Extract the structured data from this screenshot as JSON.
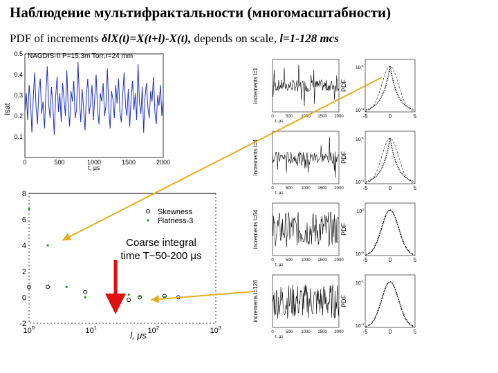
{
  "header": {
    "title": "Наблюдение мультифрактальности (многомасштабности)",
    "subtitle_prefix": "PDF of increments ",
    "subtitle_formula": "δlX(t)=X(t+l)-X(t),",
    "subtitle_mid": " depends on scale, ",
    "subtitle_range": "l=1-128 mcs"
  },
  "chart_data": [
    {
      "id": "timeseries",
      "type": "line",
      "title": "NAGDIS-II P=15.3m Torr,r=24 mm",
      "xlabel": "t, μs",
      "ylabel": "Isat",
      "xlim": [
        0,
        2000
      ],
      "ylim": [
        0.0,
        0.5
      ],
      "xticks": [
        0,
        500,
        1000,
        1500,
        2000
      ],
      "yticks": [
        0.1,
        0.2,
        0.3,
        0.4,
        0.5
      ],
      "color": "#1f2fbf",
      "series": [
        {
          "values": [
            0.22,
            0.31,
            0.18,
            0.35,
            0.27,
            0.12,
            0.29,
            0.41,
            0.24,
            0.16,
            0.33,
            0.38,
            0.21,
            0.27,
            0.14,
            0.3,
            0.44,
            0.26,
            0.19,
            0.34,
            0.25,
            0.11,
            0.29,
            0.39,
            0.22,
            0.31,
            0.17,
            0.36,
            0.28,
            0.2,
            0.42,
            0.25,
            0.15,
            0.32,
            0.27,
            0.37,
            0.19,
            0.23,
            0.46,
            0.28,
            0.17,
            0.33,
            0.24,
            0.13,
            0.3,
            0.38,
            0.21,
            0.26,
            0.35,
            0.18,
            0.29,
            0.4,
            0.23,
            0.16,
            0.31,
            0.27,
            0.36,
            0.2,
            0.25,
            0.43,
            0.24,
            0.14,
            0.32,
            0.28,
            0.19,
            0.35,
            0.26,
            0.38,
            0.22,
            0.17,
            0.3,
            0.41,
            0.25,
            0.2,
            0.33,
            0.15,
            0.28,
            0.37,
            0.23,
            0.31,
            0.18,
            0.45,
            0.26,
            0.21,
            0.34,
            0.12,
            0.29,
            0.36,
            0.24,
            0.19,
            0.32,
            0.27,
            0.39,
            0.22,
            0.16,
            0.3,
            0.25,
            0.35,
            0.2,
            0.28
          ]
        }
      ]
    },
    {
      "id": "moments",
      "type": "scatter",
      "xlabel": "l, μs",
      "xscale": "log",
      "xlim": [
        1,
        1000
      ],
      "ylim": [
        -2,
        8
      ],
      "yticks": [
        -2,
        0,
        2,
        4,
        6,
        8
      ],
      "xticks": [
        "10^0",
        "10^1",
        "10^2",
        "10^3"
      ],
      "legend": "top-right",
      "series": [
        {
          "name": "Skewness",
          "marker": "circle",
          "x": [
            1,
            2,
            8,
            40,
            60,
            150,
            250
          ],
          "y": [
            0.8,
            0.8,
            0.4,
            -0.2,
            0.0,
            0.1,
            0.0
          ]
        },
        {
          "name": "Flatness-3",
          "marker": "dot",
          "x": [
            1,
            2,
            4,
            8,
            40,
            60,
            150
          ],
          "y": [
            6.8,
            4.0,
            0.8,
            0.0,
            0.2,
            0.1,
            0.0
          ]
        }
      ]
    }
  ],
  "increments_panels": [
    {
      "ylabel": "increments l=1",
      "xlabel": "t, μs",
      "xticks": [
        "0",
        "500",
        "1000",
        "1500",
        "2000"
      ],
      "noise": "spiky"
    },
    {
      "ylabel": "increments l=4",
      "xlabel": "t, μs",
      "xticks": [
        "0",
        "500",
        "1000",
        "1500",
        "2000"
      ],
      "noise": "spiky"
    },
    {
      "ylabel": "increments l=64",
      "xlabel": "t, μs",
      "xticks": [
        "0",
        "500",
        "1000",
        "1500",
        "2000"
      ],
      "noise": "dense"
    },
    {
      "ylabel": "increments l=128",
      "xlabel": "t, μs",
      "xticks": [
        "0",
        "500",
        "1000",
        "1500",
        "2000"
      ],
      "noise": "dense"
    }
  ],
  "pdf_panels": [
    {
      "ylabel": "PDF",
      "yticks": [
        "10^-1",
        "10^-4"
      ],
      "xticks": [
        "-5",
        "0",
        "5"
      ],
      "shape": "tailed"
    },
    {
      "ylabel": "PDF",
      "yticks": [
        "10^-1",
        "10^-4"
      ],
      "xticks": [
        "-5",
        "0",
        "5"
      ],
      "shape": "tailed"
    },
    {
      "ylabel": "PDF",
      "yticks": [
        "10^0",
        "10^-5"
      ],
      "xticks": [
        "-5",
        "0",
        "5"
      ],
      "shape": "gauss"
    },
    {
      "ylabel": "PDF",
      "yticks": [
        "10^-1",
        "10^-4"
      ],
      "xticks": [
        "-5",
        "0",
        "5"
      ],
      "shape": "gauss"
    }
  ],
  "annotation": {
    "line1": "Coarse integral",
    "line2": "time  T~50-200 μs"
  },
  "colors": {
    "arrow_yellow": "#e0b020",
    "arrow_red": "#e01010",
    "series_blue": "#1f2fbf"
  }
}
